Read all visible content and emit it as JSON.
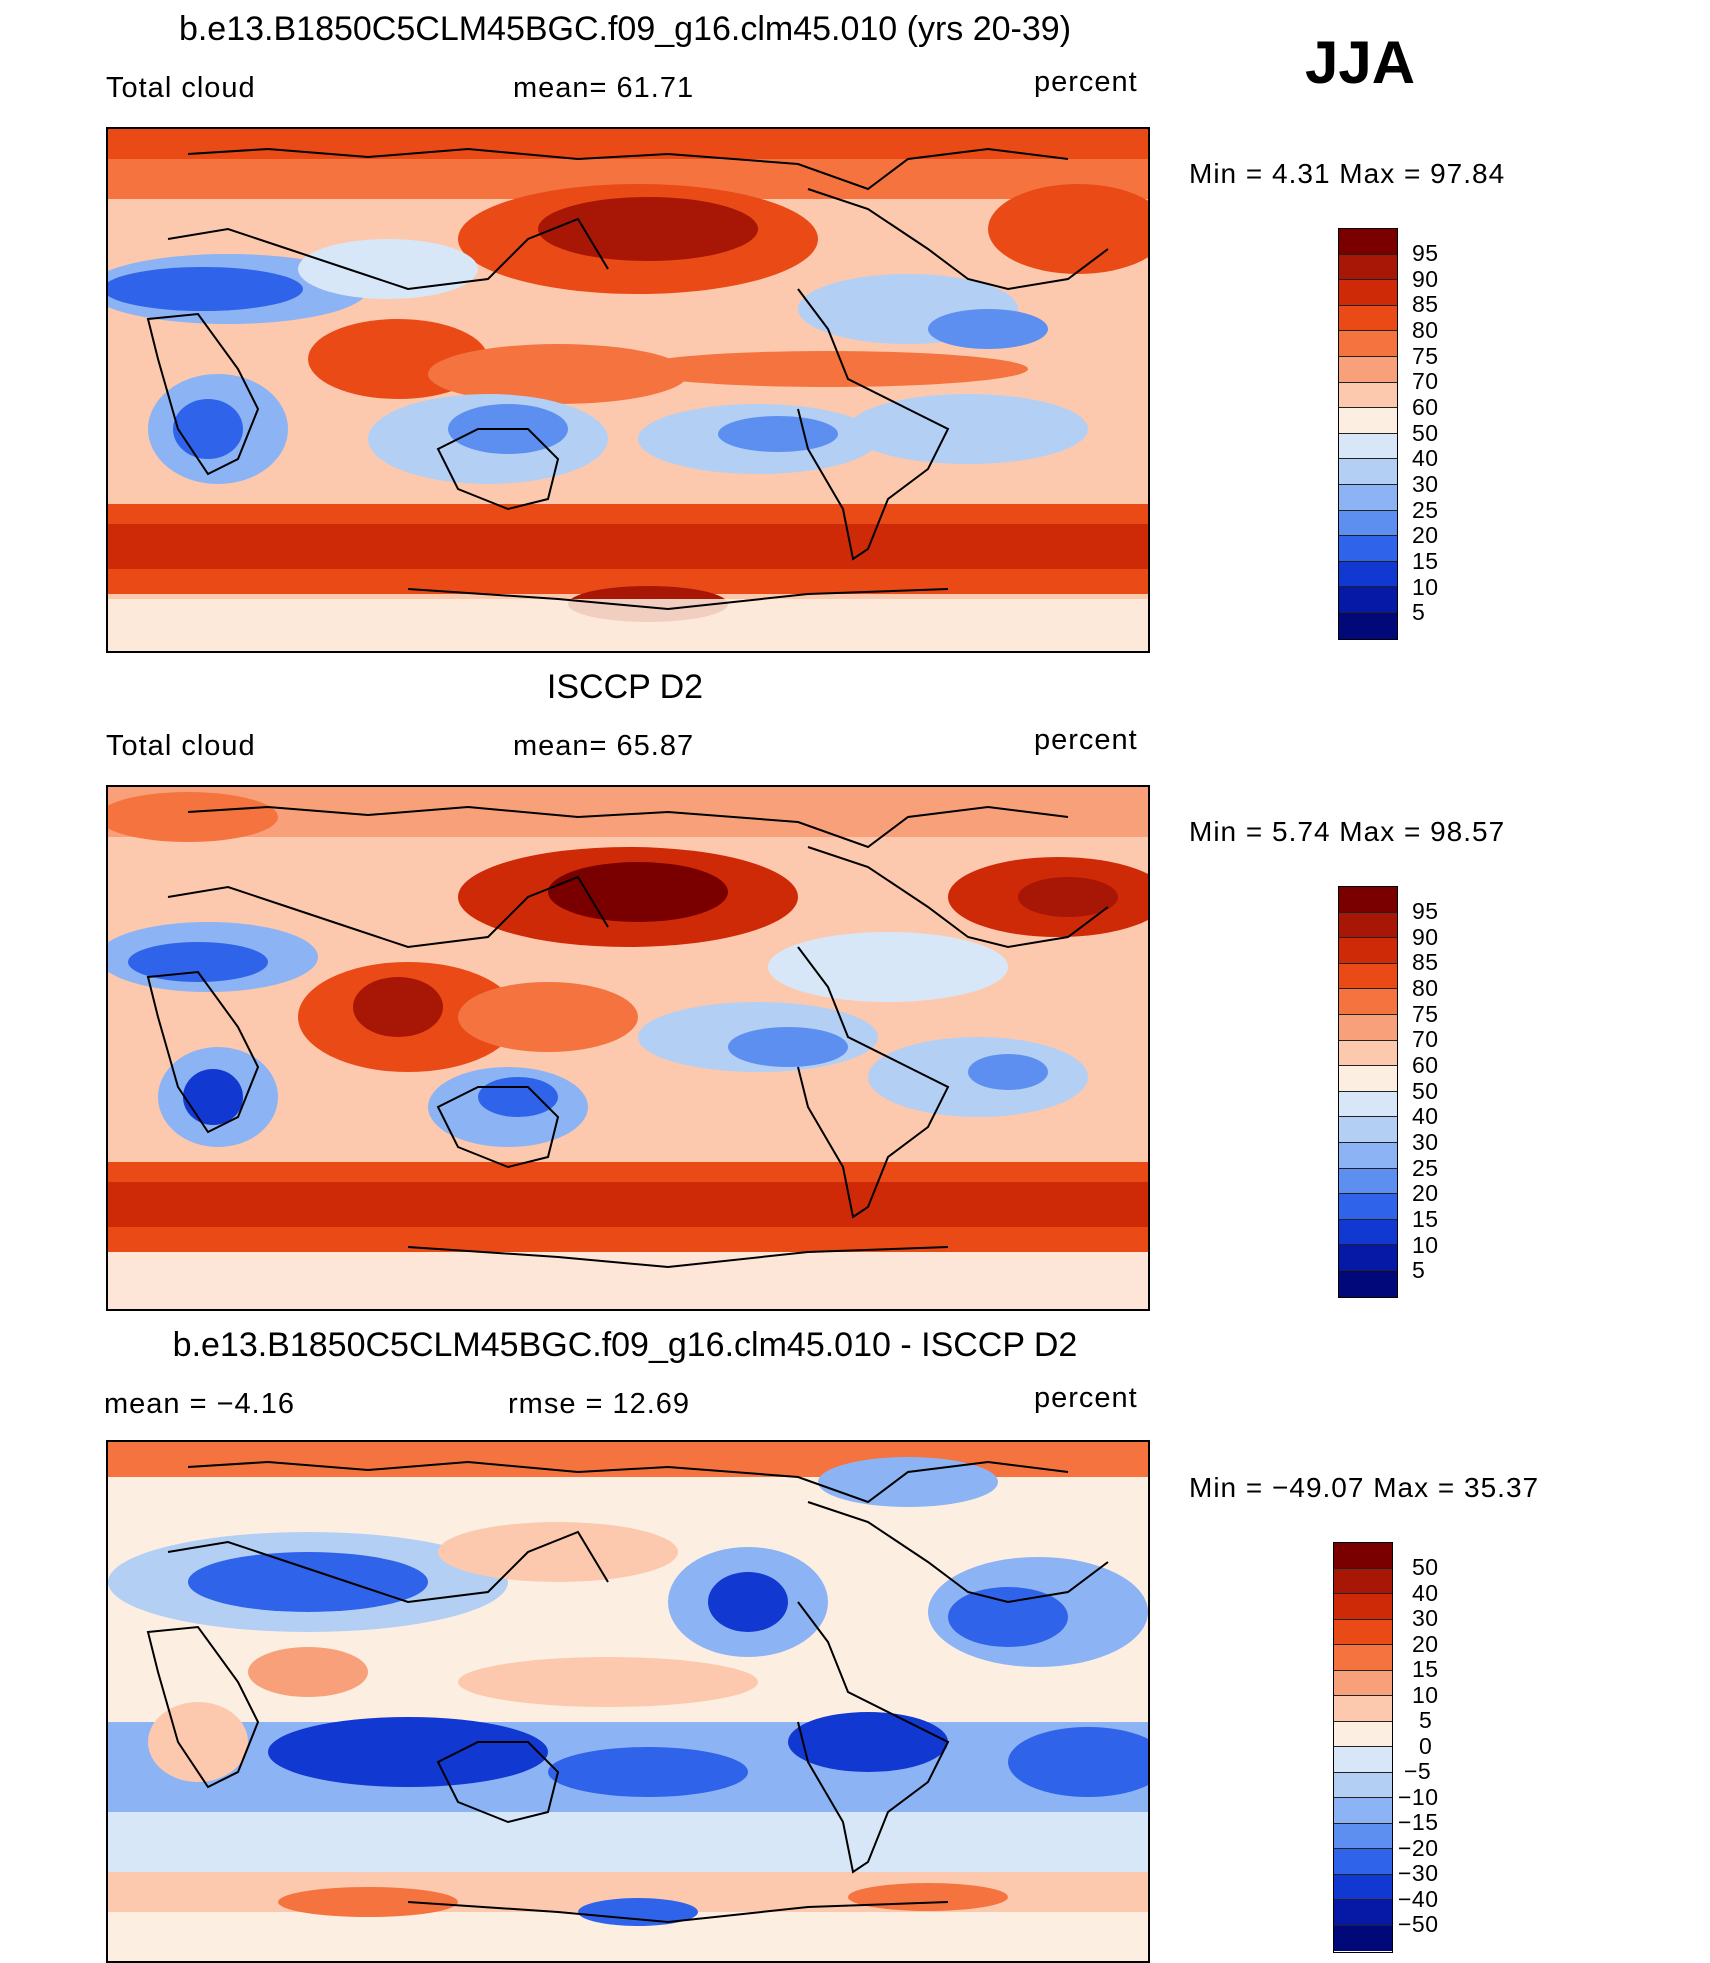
{
  "season": "JJA",
  "unit": "percent",
  "panels": [
    {
      "title": "b.e13.B1850C5CLM45BGC.f09_g16.clm45.010 (yrs 20-39)",
      "left_label": "Total cloud",
      "mid_label": "mean=   61.71",
      "right_label": "percent",
      "minmax": "Min  =      4.31  Max  =    97.84",
      "colorbar_labels": [
        "95",
        "90",
        "85",
        "80",
        "75",
        "70",
        "60",
        "50",
        "40",
        "30",
        "25",
        "20",
        "15",
        "10",
        "5"
      ]
    },
    {
      "title": "ISCCP D2",
      "left_label": "Total cloud",
      "mid_label": "mean=   65.87",
      "right_label": "percent",
      "minmax": "Min  =      5.74  Max  =    98.57",
      "colorbar_labels": [
        "95",
        "90",
        "85",
        "80",
        "75",
        "70",
        "60",
        "50",
        "40",
        "30",
        "25",
        "20",
        "15",
        "10",
        "5"
      ]
    },
    {
      "title": "b.e13.B1850C5CLM45BGC.f09_g16.clm45.010 - ISCCP D2",
      "left_label": "mean  =    −4.16",
      "mid_label": "rmse  =    12.69",
      "right_label": "percent",
      "minmax": "Min  =  −49.07  Max  =    35.37",
      "colorbar_labels": [
        "50",
        "40",
        "30",
        "20",
        "15",
        "10",
        "5",
        "0",
        "−5",
        "−10",
        "−15",
        "−20",
        "−30",
        "−40",
        "−50"
      ]
    }
  ],
  "colors": {
    "colorbar": [
      "#7a0000",
      "#a81606",
      "#cf2a08",
      "#e94a16",
      "#f5733e",
      "#f8a07a",
      "#fcc9ae",
      "#fdeee2",
      "#d7e7f8",
      "#b4cff4",
      "#8cb3f3",
      "#5c8ff0",
      "#2f64ea",
      "#1238d2",
      "#0519a6",
      "#00087a"
    ]
  },
  "chart_data": [
    {
      "type": "heatmap",
      "title": "b.e13.B1850C5CLM45BGC.f09_g16.clm45.010 (yrs 20-39)",
      "variable": "Total cloud",
      "units": "percent",
      "season": "JJA",
      "mean": 61.71,
      "min": 4.31,
      "max": 97.84,
      "contour_levels": [
        5,
        10,
        15,
        20,
        25,
        30,
        40,
        50,
        60,
        70,
        75,
        80,
        85,
        90,
        95
      ]
    },
    {
      "type": "heatmap",
      "title": "ISCCP D2",
      "variable": "Total cloud",
      "units": "percent",
      "season": "JJA",
      "mean": 65.87,
      "min": 5.74,
      "max": 98.57,
      "contour_levels": [
        5,
        10,
        15,
        20,
        25,
        30,
        40,
        50,
        60,
        70,
        75,
        80,
        85,
        90,
        95
      ]
    },
    {
      "type": "heatmap",
      "title": "b.e13.B1850C5CLM45BGC.f09_g16.clm45.010 - ISCCP D2",
      "units": "percent",
      "season": "JJA",
      "mean": -4.16,
      "rmse": 12.69,
      "min": -49.07,
      "max": 35.37,
      "contour_levels": [
        -50,
        -40,
        -30,
        -20,
        -15,
        -10,
        -5,
        0,
        5,
        10,
        15,
        20,
        30,
        40,
        50
      ]
    }
  ]
}
